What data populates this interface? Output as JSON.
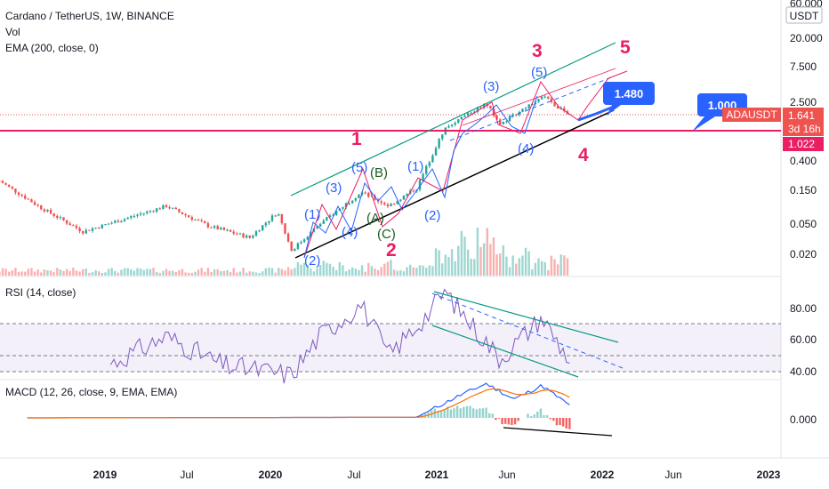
{
  "header": {
    "symbol_line": "Cardano / TetherUS, 1W, BINANCE",
    "vol_label": "Vol",
    "ema_label": "EMA (200, close, 0)",
    "rsi_label": "RSI (14, close)",
    "macd_label": "MACD (12, 26, close, 9, EMA, EMA)"
  },
  "price_axis": {
    "currency": "USDT",
    "ticks": [
      "60.000",
      "20.000",
      "7.500",
      "2.500",
      "0.400",
      "0.150",
      "0.050",
      "0.020"
    ],
    "top_tick": "60.000"
  },
  "rsi_axis": {
    "ticks": [
      "80.00",
      "60.00",
      "40.00"
    ]
  },
  "macd_axis": {
    "ticks": [
      "0.000"
    ]
  },
  "time_axis": {
    "ticks": [
      "2019",
      "Jul",
      "2020",
      "Jul",
      "2021",
      "Jun",
      "2022",
      "Jun",
      "2023"
    ]
  },
  "badges": {
    "symbol": "ADAUSDT",
    "price": "1.641",
    "countdown": "3d 16h",
    "level": "1.022"
  },
  "targets": {
    "t1": "1.480",
    "t2": "1.000"
  },
  "colors": {
    "up": "#26a69a",
    "down": "#ef5350",
    "wave_blue": "#2962ff",
    "wave_red": "#e91e63",
    "rsi_line": "#7e57c2",
    "macd_line": "#2962ff",
    "signal_line": "#ff6d00",
    "channel": "#089981",
    "support": "#000000",
    "horizontal": "#e91e63",
    "callout": "#2962ff"
  },
  "chart_data": {
    "type": "candlestick",
    "title": "Cardano / TetherUS, 1W, BINANCE",
    "price_scale": "log",
    "ylim": [
      0.012,
      60
    ],
    "x_range": [
      "2018-06",
      "2023-02"
    ],
    "horizontal_level": 1.022,
    "price_path": [
      {
        "t": "2018-06",
        "close": 0.2
      },
      {
        "t": "2018-09",
        "close": 0.085
      },
      {
        "t": "2018-12",
        "close": 0.04
      },
      {
        "t": "2019-03",
        "close": 0.06
      },
      {
        "t": "2019-06",
        "close": 0.09
      },
      {
        "t": "2019-09",
        "close": 0.048
      },
      {
        "t": "2019-12",
        "close": 0.033
      },
      {
        "t": "2020-02",
        "close": 0.075
      },
      {
        "t": "2020-03",
        "close": 0.022
      },
      {
        "t": "2020-05",
        "close": 0.05
      },
      {
        "t": "2020-08",
        "close": 0.14
      },
      {
        "t": "2020-10",
        "close": 0.09
      },
      {
        "t": "2020-12",
        "close": 0.16
      },
      {
        "t": "2021-02",
        "close": 1.05
      },
      {
        "t": "2021-05",
        "close": 2.3
      },
      {
        "t": "2021-06",
        "close": 1.2
      },
      {
        "t": "2021-09",
        "close": 2.97
      },
      {
        "t": "2021-11",
        "close": 1.641
      }
    ],
    "ema200_label": "EMA (200, close, 0)",
    "rsi": [
      {
        "t": "2019-02",
        "v": 45
      },
      {
        "t": "2019-06",
        "v": 62
      },
      {
        "t": "2019-10",
        "v": 44
      },
      {
        "t": "2020-03",
        "v": 38
      },
      {
        "t": "2020-05",
        "v": 62
      },
      {
        "t": "2020-08",
        "v": 82
      },
      {
        "t": "2020-10",
        "v": 50
      },
      {
        "t": "2021-01",
        "v": 78
      },
      {
        "t": "2021-02",
        "v": 90
      },
      {
        "t": "2021-06",
        "v": 48
      },
      {
        "t": "2021-09",
        "v": 74
      },
      {
        "t": "2021-11",
        "v": 47
      }
    ],
    "rsi_levels": [
      70,
      50,
      30
    ],
    "macd": [
      {
        "t": "2018-08",
        "v": 0.0
      },
      {
        "t": "2020-12",
        "v": 0.01
      },
      {
        "t": "2021-03",
        "v": 0.35
      },
      {
        "t": "2021-05",
        "v": 0.55
      },
      {
        "t": "2021-07",
        "v": 0.3
      },
      {
        "t": "2021-09",
        "v": 0.52
      },
      {
        "t": "2021-11",
        "v": 0.2
      }
    ],
    "wave_labels_blue": [
      "(1)",
      "(2)",
      "(3)",
      "(4)",
      "(5)",
      "(1)",
      "(2)",
      "(3)",
      "(4)",
      "(5)"
    ],
    "wave_labels_corrective": [
      "(A)",
      "(B)",
      "(C)"
    ],
    "wave_labels_primary": [
      "1",
      "2",
      "3",
      "4",
      "5"
    ]
  }
}
